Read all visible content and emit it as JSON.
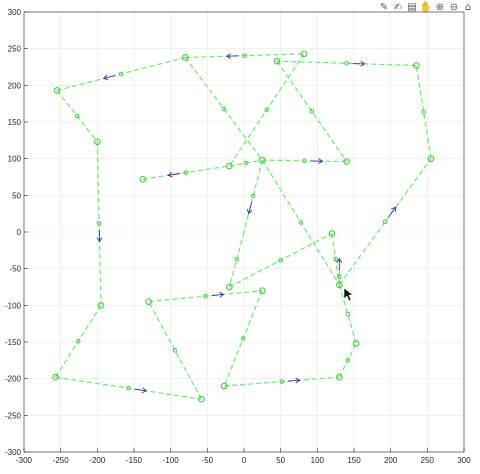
{
  "toolbar": {
    "icons": [
      "brush-icon",
      "datatip-icon",
      "rotate-icon",
      "pan-icon",
      "zoom-in-icon",
      "zoom-out-icon",
      "home-icon"
    ],
    "glyphs": [
      "✎",
      "✍",
      "▤",
      "✋",
      "⊕",
      "⊖",
      "⌂"
    ]
  },
  "chart_data": {
    "type": "line",
    "title": "",
    "xlabel": "",
    "ylabel": "",
    "xlim": [
      -300,
      300
    ],
    "ylim": [
      -300,
      300
    ],
    "xticks": [
      -300,
      -250,
      -200,
      -150,
      -100,
      -50,
      0,
      50,
      100,
      150,
      200,
      250,
      300
    ],
    "yticks": [
      -300,
      -250,
      -200,
      -150,
      -100,
      -50,
      0,
      50,
      100,
      150,
      200,
      250,
      300
    ],
    "grid": true,
    "colors": {
      "edge": "#66ee66",
      "node": "#33cc33",
      "arrow": "#3333aa",
      "grid": "#e6e6e6",
      "axis": "#262626"
    },
    "nodes": [
      {
        "x": -80,
        "y": 238
      },
      {
        "x": 82,
        "y": 243
      },
      {
        "x": 45,
        "y": 233
      },
      {
        "x": 235,
        "y": 227
      },
      {
        "x": -255,
        "y": 193
      },
      {
        "x": -200,
        "y": 123
      },
      {
        "x": -138,
        "y": 72
      },
      {
        "x": -20,
        "y": 90
      },
      {
        "x": 25,
        "y": 98
      },
      {
        "x": 140,
        "y": 96
      },
      {
        "x": 255,
        "y": 100
      },
      {
        "x": -195,
        "y": -100
      },
      {
        "x": -130,
        "y": -95
      },
      {
        "x": 25,
        "y": -80
      },
      {
        "x": -20,
        "y": -75
      },
      {
        "x": 120,
        "y": -2
      },
      {
        "x": 130,
        "y": -72
      },
      {
        "x": 153,
        "y": -152
      },
      {
        "x": 130,
        "y": -198
      },
      {
        "x": -27,
        "y": -210
      },
      {
        "x": -58,
        "y": -228
      },
      {
        "x": -257,
        "y": -198
      }
    ],
    "edges": [
      {
        "from": [
          -80,
          238
        ],
        "to": [
          82,
          243
        ],
        "arrow_dir": "backward"
      },
      {
        "from": [
          -80,
          238
        ],
        "to": [
          -255,
          193
        ],
        "arrow_dir": "forward"
      },
      {
        "from": [
          -255,
          193
        ],
        "to": [
          -200,
          123
        ],
        "arrow_dir": "none"
      },
      {
        "from": [
          -200,
          123
        ],
        "to": [
          -195,
          -100
        ],
        "arrow_dir": "forward"
      },
      {
        "from": [
          -195,
          -100
        ],
        "to": [
          -257,
          -198
        ],
        "arrow_dir": "none"
      },
      {
        "from": [
          -257,
          -198
        ],
        "to": [
          -58,
          -228
        ],
        "arrow_dir": "forward"
      },
      {
        "from": [
          -58,
          -228
        ],
        "to": [
          -130,
          -95
        ],
        "arrow_dir": "none"
      },
      {
        "from": [
          -130,
          -95
        ],
        "to": [
          25,
          -80
        ],
        "arrow_dir": "forward"
      },
      {
        "from": [
          25,
          -80
        ],
        "to": [
          -27,
          -210
        ],
        "arrow_dir": "none"
      },
      {
        "from": [
          -27,
          -210
        ],
        "to": [
          130,
          -198
        ],
        "arrow_dir": "forward"
      },
      {
        "from": [
          130,
          -198
        ],
        "to": [
          153,
          -152
        ],
        "arrow_dir": "none"
      },
      {
        "from": [
          153,
          -152
        ],
        "to": [
          130,
          -72
        ],
        "arrow_dir": "none"
      },
      {
        "from": [
          130,
          -72
        ],
        "to": [
          255,
          100
        ],
        "arrow_dir": "forward"
      },
      {
        "from": [
          255,
          100
        ],
        "to": [
          235,
          227
        ],
        "arrow_dir": "none"
      },
      {
        "from": [
          235,
          227
        ],
        "to": [
          45,
          233
        ],
        "arrow_dir": "backward"
      },
      {
        "from": [
          45,
          233
        ],
        "to": [
          140,
          96
        ],
        "arrow_dir": "none"
      },
      {
        "from": [
          140,
          96
        ],
        "to": [
          25,
          98
        ],
        "arrow_dir": "backward"
      },
      {
        "from": [
          -138,
          72
        ],
        "to": [
          -20,
          90
        ],
        "arrow_dir": "backward"
      },
      {
        "from": [
          -20,
          90
        ],
        "to": [
          25,
          98
        ],
        "arrow_dir": "none"
      },
      {
        "from": [
          82,
          243
        ],
        "to": [
          -20,
          90
        ],
        "arrow_dir": "none"
      },
      {
        "from": [
          -80,
          238
        ],
        "to": [
          25,
          98
        ],
        "arrow_dir": "none"
      },
      {
        "from": [
          25,
          98
        ],
        "to": [
          130,
          -72
        ],
        "arrow_dir": "none"
      },
      {
        "from": [
          25,
          98
        ],
        "to": [
          0,
          0
        ],
        "arrow_dir": "forward"
      },
      {
        "from": [
          0,
          0
        ],
        "to": [
          -20,
          -75
        ],
        "arrow_dir": "none"
      },
      {
        "from": [
          -20,
          -75
        ],
        "to": [
          120,
          -2
        ],
        "arrow_dir": "none"
      },
      {
        "from": [
          120,
          -2
        ],
        "to": [
          130,
          -72
        ],
        "arrow_dir": "none"
      },
      {
        "from": [
          130,
          -72
        ],
        "to": [
          130,
          -50
        ],
        "arrow_dir": "forward"
      }
    ]
  }
}
